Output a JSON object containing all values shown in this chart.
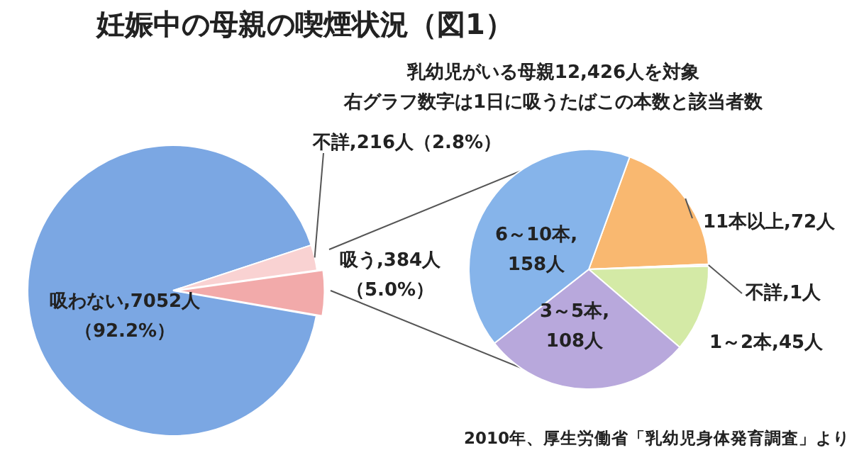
{
  "chart_data": [
    {
      "type": "pie",
      "title": "妊娠中の母親の喫煙状況（図1）",
      "categories": [
        "吸わない",
        "不詳",
        "吸う"
      ],
      "values": [
        7052,
        216,
        384
      ],
      "colors": [
        "#7ba7e3",
        "#f9d2d2",
        "#f2aaaa"
      ],
      "value_labels": [
        ",7052人（92.2%）",
        ",216人（2.8%）",
        ",384人（5.0%）"
      ],
      "annotations": [
        "2010年、厚生労働省「乳幼児身体発育調査」より"
      ]
    },
    {
      "type": "pie",
      "subtitle": "乳幼児がいる母親12,426人を対象",
      "annotations": [
        "右グラフ数字は1日に吸うたばこの本数と該当者数"
      ],
      "categories": [
        "11本以上",
        "不詳",
        "1～2本",
        "3～5本",
        "6～10本"
      ],
      "values": [
        72,
        1,
        45,
        108,
        158
      ],
      "colors": [
        "#f9b870",
        "#eeeeee",
        "#d4eaa6",
        "#b8a8dc",
        "#86b4ea"
      ],
      "value_labels": [
        ",72人",
        ",1人",
        ",45人",
        ",108人",
        ",158人"
      ]
    }
  ]
}
